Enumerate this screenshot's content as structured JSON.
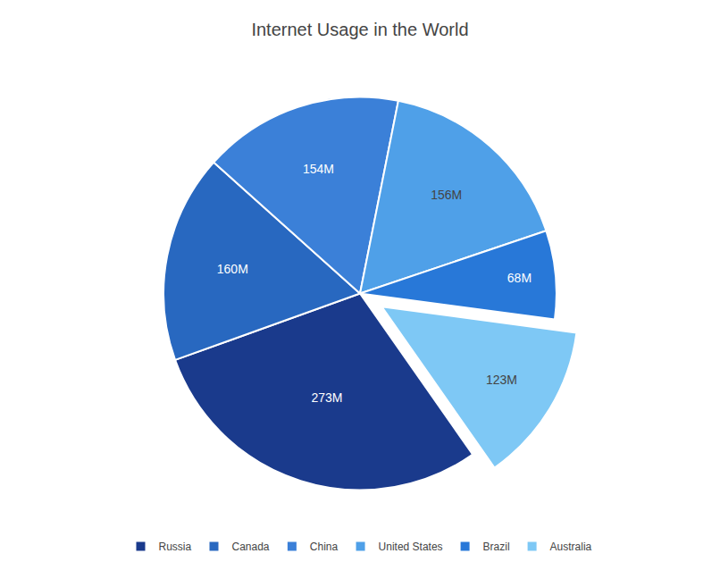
{
  "chart_data": {
    "type": "pie",
    "title": "Internet Usage in the World",
    "categories": [
      "Russia",
      "Canada",
      "China",
      "United States",
      "Brazil",
      "Australia"
    ],
    "values": [
      273,
      160,
      154,
      156,
      68,
      123
    ],
    "value_labels": [
      "273M",
      "160M",
      "154M",
      "156M",
      "68M",
      "123M"
    ],
    "colors": [
      "#1a3a8c",
      "#2868c0",
      "#3b80d8",
      "#4fa0e8",
      "#2878d8",
      "#7ec8f5"
    ],
    "data_labels": true,
    "legend": "bottom"
  }
}
